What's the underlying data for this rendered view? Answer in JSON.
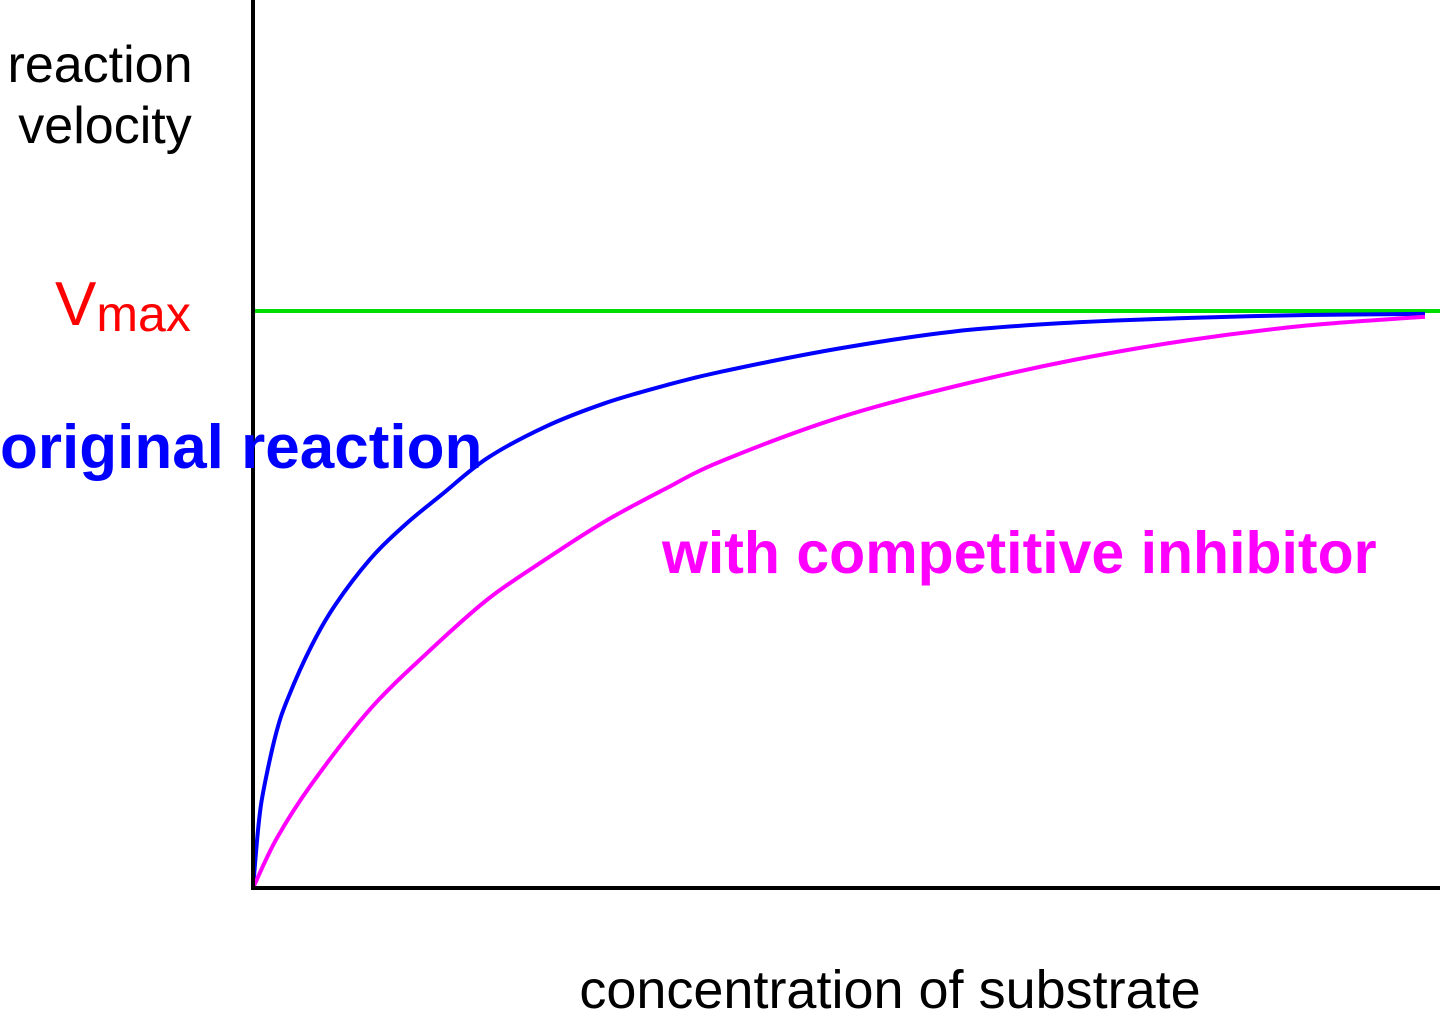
{
  "chart_data": {
    "type": "line",
    "title": "",
    "ylabel_lines": [
      "reaction",
      "velocity"
    ],
    "xlabel": "concentration of substrate",
    "vmax_label": {
      "main": "V",
      "sub": "max"
    },
    "ylim": [
      0,
      1
    ],
    "xlim": [
      0,
      1
    ],
    "vmax_value": 1,
    "grid": false,
    "series": [
      {
        "name": "original reaction",
        "color": "#0000ff",
        "x": [
          0,
          0.005,
          0.01,
          0.02,
          0.03,
          0.05,
          0.07,
          0.1,
          0.13,
          0.16,
          0.2,
          0.25,
          0.3,
          0.35,
          0.4,
          0.5,
          0.6,
          0.7,
          0.8,
          0.9,
          1.0
        ],
        "y": [
          0,
          0.115,
          0.18,
          0.27,
          0.33,
          0.42,
          0.49,
          0.57,
          0.63,
          0.68,
          0.745,
          0.8,
          0.84,
          0.87,
          0.895,
          0.935,
          0.965,
          0.98,
          0.988,
          0.993,
          0.995
        ]
      },
      {
        "name": "with competitive inhibitor",
        "color": "#ff00ff",
        "x": [
          0,
          0.02,
          0.05,
          0.1,
          0.15,
          0.2,
          0.25,
          0.3,
          0.35,
          0.4,
          0.5,
          0.6,
          0.7,
          0.8,
          0.9,
          1.0
        ],
        "y": [
          0,
          0.085,
          0.18,
          0.31,
          0.41,
          0.5,
          0.57,
          0.635,
          0.69,
          0.74,
          0.815,
          0.87,
          0.915,
          0.95,
          0.975,
          0.99
        ]
      }
    ],
    "reference_lines": [
      {
        "name": "Vmax",
        "orientation": "horizontal",
        "value": 1,
        "color": "#00dd00"
      }
    ],
    "annotations": [
      {
        "text": "original reaction",
        "color": "#0000ff"
      },
      {
        "text": "with competitive inhibitor",
        "color": "#ff00ff"
      }
    ],
    "colors": {
      "axis": "#000000",
      "vmax_label": "#ff0000"
    }
  }
}
